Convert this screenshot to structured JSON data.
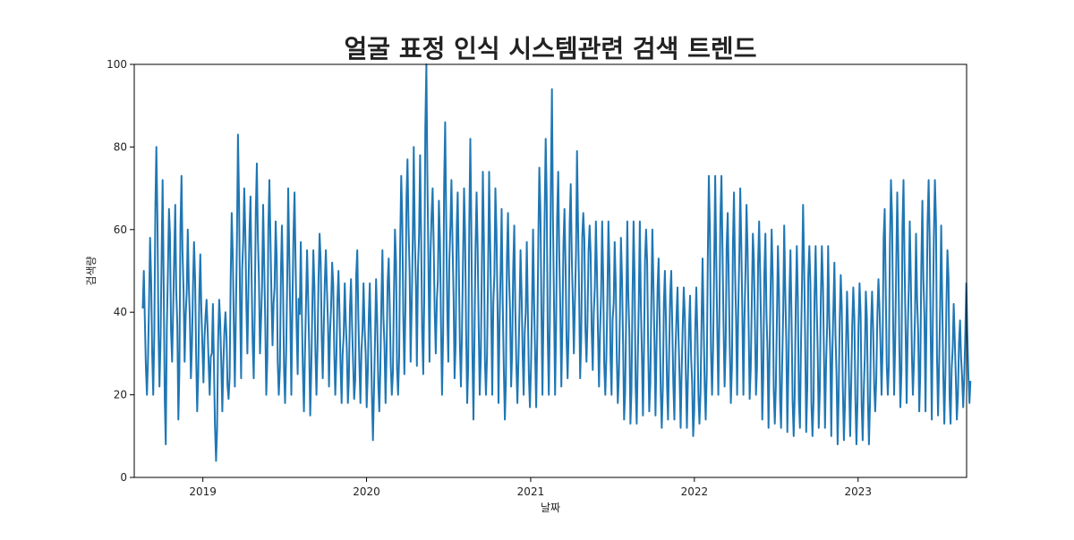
{
  "chart_data": {
    "type": "line",
    "title": "얼굴 표정 인식 시스템관련 검색 트렌드",
    "xlabel": "날짜",
    "ylabel": "검색량",
    "x_range": [
      "2018-08-01",
      "2023-08-31"
    ],
    "ylim": [
      0,
      100
    ],
    "y_ticks": [
      0,
      20,
      40,
      60,
      80,
      100
    ],
    "x_ticks": [
      {
        "date": "2019-01-01",
        "label": "2019"
      },
      {
        "date": "2020-01-01",
        "label": "2020"
      },
      {
        "date": "2021-01-01",
        "label": "2021"
      },
      {
        "date": "2022-01-01",
        "label": "2022"
      },
      {
        "date": "2023-01-01",
        "label": "2023"
      }
    ],
    "grid": false,
    "line_color": "#1f77b4",
    "series": [
      {
        "sampling": "approx. weekly max/min envelope read from the plot",
        "x": [
          "2018-08-20",
          "2018-09-03",
          "2018-09-17",
          "2018-10-01",
          "2018-10-15",
          "2018-10-29",
          "2018-11-12",
          "2018-11-26",
          "2018-12-10",
          "2018-12-24",
          "2019-01-07",
          "2019-01-21",
          "2019-02-04",
          "2019-02-18",
          "2019-03-04",
          "2019-03-18",
          "2019-04-01",
          "2019-04-15",
          "2019-04-29",
          "2019-05-13",
          "2019-05-27",
          "2019-06-10",
          "2019-06-24",
          "2019-07-08",
          "2019-07-22",
          "2019-08-05",
          "2019-08-19",
          "2019-09-02",
          "2019-09-16",
          "2019-09-30",
          "2019-10-14",
          "2019-10-28",
          "2019-11-11",
          "2019-11-25",
          "2019-12-09",
          "2019-12-23",
          "2020-01-06",
          "2020-01-20",
          "2020-02-03",
          "2020-02-17",
          "2020-03-02",
          "2020-03-16",
          "2020-03-30",
          "2020-04-13",
          "2020-04-27",
          "2020-05-11",
          "2020-05-25",
          "2020-06-08",
          "2020-06-22",
          "2020-07-06",
          "2020-07-20",
          "2020-08-03",
          "2020-08-17",
          "2020-08-31",
          "2020-09-14",
          "2020-09-28",
          "2020-10-12",
          "2020-10-26",
          "2020-11-09",
          "2020-11-23",
          "2020-12-07",
          "2020-12-21",
          "2021-01-04",
          "2021-01-18",
          "2021-02-01",
          "2021-02-15",
          "2021-03-01",
          "2021-03-15",
          "2021-03-29",
          "2021-04-12",
          "2021-04-26",
          "2021-05-10",
          "2021-05-24",
          "2021-06-07",
          "2021-06-21",
          "2021-07-05",
          "2021-07-19",
          "2021-08-02",
          "2021-08-16",
          "2021-08-30",
          "2021-09-13",
          "2021-09-27",
          "2021-10-11",
          "2021-10-25",
          "2021-11-08",
          "2021-11-22",
          "2021-12-06",
          "2021-12-20",
          "2022-01-03",
          "2022-01-17",
          "2022-01-31",
          "2022-02-14",
          "2022-02-28",
          "2022-03-14",
          "2022-03-28",
          "2022-04-11",
          "2022-04-25",
          "2022-05-09",
          "2022-05-23",
          "2022-06-06",
          "2022-06-20",
          "2022-07-04",
          "2022-07-18",
          "2022-08-01",
          "2022-08-15",
          "2022-08-29",
          "2022-09-12",
          "2022-09-26",
          "2022-10-10",
          "2022-10-24",
          "2022-11-07",
          "2022-11-21",
          "2022-12-05",
          "2022-12-19",
          "2023-01-02",
          "2023-01-16",
          "2023-01-30",
          "2023-02-13",
          "2023-02-27",
          "2023-03-13",
          "2023-03-27",
          "2023-04-10",
          "2023-04-24",
          "2023-05-08",
          "2023-05-22",
          "2023-06-05",
          "2023-06-19",
          "2023-07-03",
          "2023-07-17",
          "2023-07-31",
          "2023-08-14",
          "2023-08-28"
        ],
        "high": [
          50,
          58,
          80,
          72,
          65,
          66,
          73,
          60,
          57,
          54,
          43,
          42,
          43,
          40,
          64,
          83,
          70,
          68,
          76,
          66,
          72,
          62,
          61,
          70,
          69,
          57,
          55,
          55,
          59,
          55,
          52,
          50,
          47,
          48,
          55,
          47,
          47,
          48,
          55,
          53,
          60,
          73,
          77,
          80,
          78,
          100,
          70,
          67,
          86,
          72,
          69,
          70,
          82,
          69,
          74,
          74,
          70,
          65,
          64,
          61,
          55,
          57,
          60,
          75,
          82,
          94,
          74,
          65,
          71,
          79,
          64,
          61,
          62,
          62,
          62,
          57,
          58,
          62,
          62,
          62,
          60,
          60,
          53,
          50,
          50,
          46,
          46,
          44,
          46,
          53,
          73,
          73,
          73,
          64,
          69,
          70,
          66,
          59,
          62,
          59,
          60,
          56,
          61,
          55,
          56,
          66,
          56,
          56,
          56,
          56,
          52,
          49,
          45,
          46,
          47,
          45,
          45,
          48,
          65,
          72,
          69,
          72,
          62,
          59,
          67,
          72,
          72,
          61,
          55,
          42,
          38,
          47
        ],
        "low": [
          20,
          20,
          22,
          8,
          28,
          14,
          28,
          24,
          16,
          23,
          20,
          4,
          16,
          19,
          22,
          24,
          30,
          24,
          30,
          20,
          32,
          20,
          18,
          20,
          25,
          16,
          15,
          20,
          24,
          22,
          20,
          18,
          18,
          19,
          18,
          17,
          9,
          16,
          18,
          20,
          20,
          25,
          28,
          27,
          25,
          28,
          30,
          20,
          28,
          24,
          22,
          18,
          14,
          20,
          20,
          20,
          18,
          14,
          22,
          18,
          20,
          17,
          17,
          20,
          20,
          20,
          22,
          24,
          30,
          24,
          28,
          26,
          22,
          20,
          20,
          18,
          14,
          13,
          13,
          15,
          16,
          15,
          12,
          14,
          14,
          12,
          12,
          10,
          13,
          14,
          20,
          20,
          22,
          18,
          20,
          20,
          19,
          20,
          14,
          12,
          13,
          12,
          11,
          10,
          12,
          11,
          10,
          12,
          12,
          10,
          8,
          9,
          10,
          8,
          9,
          8,
          16,
          20,
          20,
          20,
          17,
          18,
          20,
          16,
          16,
          14,
          15,
          13,
          13,
          14,
          17,
          18
        ]
      }
    ]
  }
}
